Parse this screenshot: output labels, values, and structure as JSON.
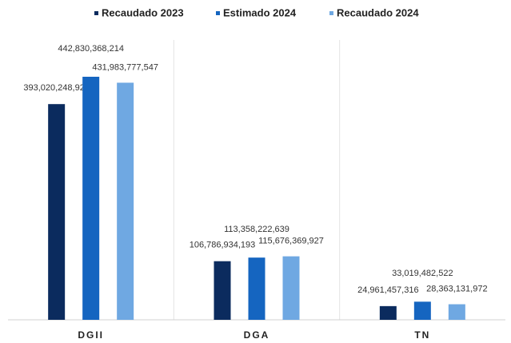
{
  "chart_data": {
    "type": "bar",
    "categories": [
      "DGII",
      "DGA",
      "TN"
    ],
    "series": [
      {
        "name": "Recaudado 2023",
        "color": "#0b2b5e",
        "values": [
          393020248920,
          106786934193,
          24961457316
        ],
        "value_labels": [
          "393,020,248,920",
          "106,786,934,193",
          "24,961,457,316"
        ]
      },
      {
        "name": "Estimado 2024",
        "color": "#1565c0",
        "values": [
          442830368214,
          113358222639,
          33019482522
        ],
        "value_labels": [
          "442,830,368,214",
          "113,358,222,639",
          "33,019,482,522"
        ]
      },
      {
        "name": "Recaudado 2024",
        "color": "#6fa8e2",
        "values": [
          431983777547,
          115676369927,
          28363131972
        ],
        "value_labels": [
          "431,983,777,547",
          "115,676,369,927",
          "28,363,131,972"
        ]
      }
    ],
    "legend": "top"
  }
}
